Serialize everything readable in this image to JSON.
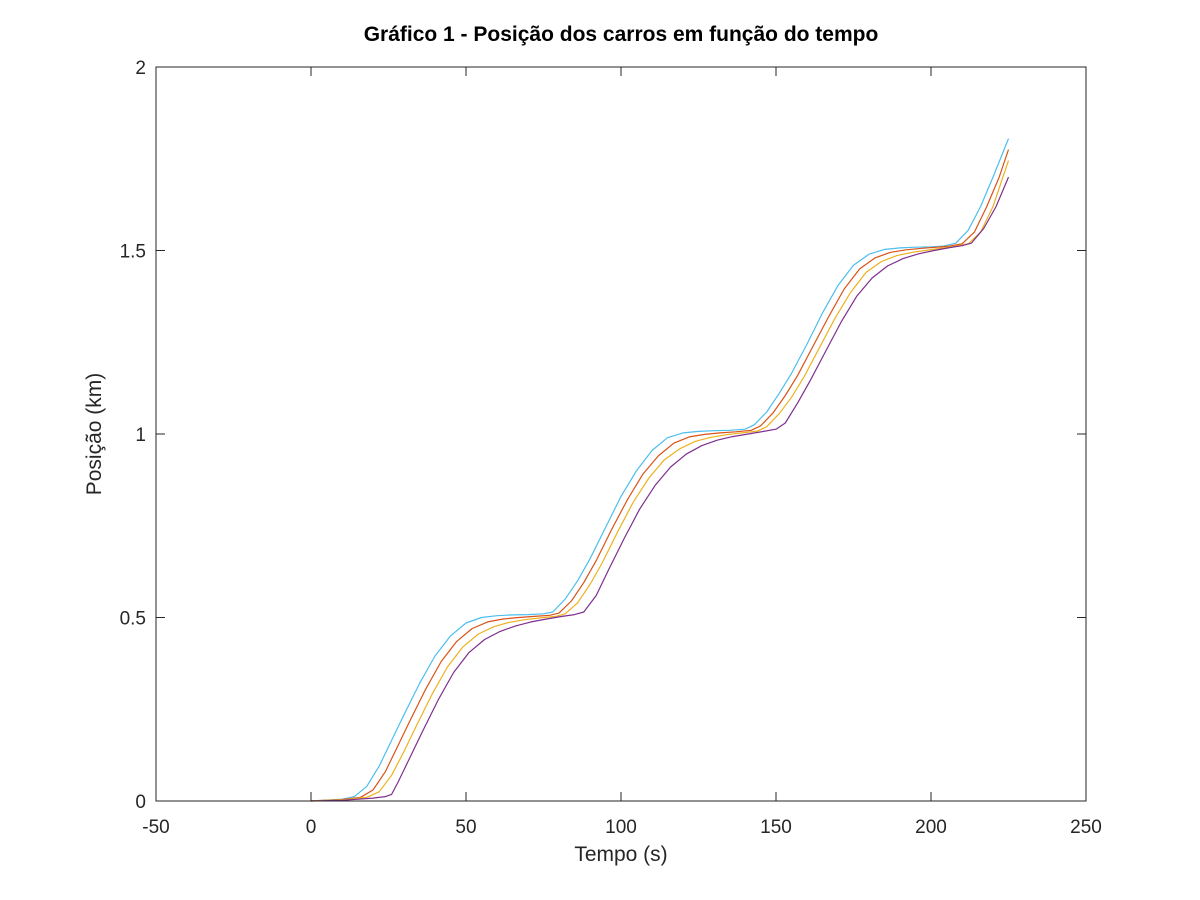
{
  "chart_data": {
    "type": "line",
    "title": "Gráfico 1 - Posição dos carros em função do tempo",
    "xlabel": "Tempo (s)",
    "ylabel": "Posição (km)",
    "xlim": [
      -50,
      250
    ],
    "ylim": [
      0,
      2
    ],
    "xticks": [
      -50,
      0,
      50,
      100,
      150,
      200,
      250
    ],
    "xtick_labels": [
      "-50",
      "0",
      "50",
      "100",
      "150",
      "200",
      "250"
    ],
    "yticks": [
      0,
      0.5,
      1,
      1.5,
      2
    ],
    "ytick_labels": [
      "0",
      "0.5",
      "1",
      "1.5",
      "2"
    ],
    "grid": false,
    "legend": false,
    "series": [
      {
        "color": "#4DBEEE",
        "x": [
          0,
          10,
          14,
          18,
          22,
          26,
          30,
          35,
          40,
          45,
          50,
          55,
          60,
          65,
          70,
          75,
          78,
          82,
          86,
          90,
          95,
          100,
          105,
          110,
          115,
          120,
          125,
          130,
          135,
          140,
          143,
          147,
          151,
          155,
          160,
          165,
          170,
          175,
          180,
          185,
          190,
          195,
          200,
          204,
          208,
          212,
          216,
          220,
          225
        ],
        "y": [
          0,
          0.005,
          0.012,
          0.04,
          0.095,
          0.165,
          0.235,
          0.32,
          0.395,
          0.45,
          0.485,
          0.5,
          0.505,
          0.507,
          0.508,
          0.51,
          0.515,
          0.55,
          0.6,
          0.66,
          0.745,
          0.83,
          0.9,
          0.955,
          0.99,
          1.003,
          1.007,
          1.009,
          1.01,
          1.013,
          1.025,
          1.06,
          1.11,
          1.165,
          1.245,
          1.33,
          1.405,
          1.46,
          1.49,
          1.503,
          1.507,
          1.509,
          1.51,
          1.512,
          1.52,
          1.555,
          1.62,
          1.7,
          1.805
        ]
      },
      {
        "color": "#D95319",
        "x": [
          0,
          10,
          16,
          20,
          24,
          28,
          32,
          37,
          42,
          47,
          52,
          57,
          62,
          67,
          72,
          77,
          80,
          84,
          88,
          92,
          97,
          102,
          107,
          112,
          117,
          122,
          127,
          132,
          137,
          142,
          145,
          149,
          153,
          157,
          162,
          167,
          172,
          177,
          182,
          187,
          192,
          197,
          202,
          206,
          210,
          214,
          218,
          222,
          225
        ],
        "y": [
          0,
          0.004,
          0.01,
          0.03,
          0.08,
          0.15,
          0.22,
          0.305,
          0.38,
          0.435,
          0.47,
          0.488,
          0.496,
          0.5,
          0.503,
          0.506,
          0.512,
          0.545,
          0.595,
          0.655,
          0.74,
          0.82,
          0.89,
          0.94,
          0.975,
          0.992,
          0.999,
          1.003,
          1.006,
          1.01,
          1.022,
          1.057,
          1.105,
          1.16,
          1.24,
          1.32,
          1.395,
          1.45,
          1.48,
          1.495,
          1.502,
          1.506,
          1.509,
          1.512,
          1.518,
          1.55,
          1.62,
          1.7,
          1.775
        ]
      },
      {
        "color": "#EDB120",
        "x": [
          0,
          10,
          18,
          22,
          26,
          30,
          34,
          39,
          44,
          49,
          54,
          59,
          64,
          69,
          74,
          79,
          82,
          86,
          90,
          94,
          99,
          104,
          109,
          114,
          119,
          124,
          129,
          134,
          139,
          144,
          147,
          151,
          155,
          159,
          164,
          169,
          174,
          179,
          184,
          189,
          194,
          199,
          204,
          208,
          212,
          216,
          220,
          225
        ],
        "y": [
          0,
          0.003,
          0.01,
          0.025,
          0.07,
          0.135,
          0.205,
          0.29,
          0.365,
          0.42,
          0.455,
          0.475,
          0.487,
          0.494,
          0.499,
          0.503,
          0.51,
          0.54,
          0.59,
          0.65,
          0.735,
          0.815,
          0.88,
          0.93,
          0.96,
          0.98,
          0.991,
          0.998,
          1.003,
          1.008,
          1.02,
          1.055,
          1.1,
          1.155,
          1.235,
          1.315,
          1.385,
          1.44,
          1.47,
          1.486,
          1.495,
          1.501,
          1.507,
          1.512,
          1.518,
          1.55,
          1.62,
          1.745
        ]
      },
      {
        "color": "#7E2F8E",
        "x": [
          0,
          10,
          20,
          24,
          26,
          28,
          32,
          36,
          41,
          46,
          51,
          56,
          61,
          66,
          71,
          76,
          81,
          85,
          88,
          92,
          96,
          101,
          106,
          111,
          116,
          121,
          126,
          131,
          136,
          141,
          146,
          150,
          153,
          157,
          161,
          166,
          171,
          176,
          181,
          186,
          191,
          196,
          201,
          206,
          210,
          213,
          217,
          221,
          225
        ],
        "y": [
          0,
          0.002,
          0.008,
          0.012,
          0.018,
          0.05,
          0.12,
          0.19,
          0.275,
          0.35,
          0.405,
          0.44,
          0.462,
          0.477,
          0.488,
          0.496,
          0.503,
          0.508,
          0.515,
          0.56,
          0.63,
          0.715,
          0.795,
          0.86,
          0.91,
          0.945,
          0.968,
          0.983,
          0.993,
          1.0,
          1.007,
          1.013,
          1.03,
          1.085,
          1.145,
          1.225,
          1.305,
          1.375,
          1.425,
          1.458,
          1.478,
          1.491,
          1.5,
          1.508,
          1.513,
          1.52,
          1.56,
          1.62,
          1.7
        ]
      }
    ]
  }
}
